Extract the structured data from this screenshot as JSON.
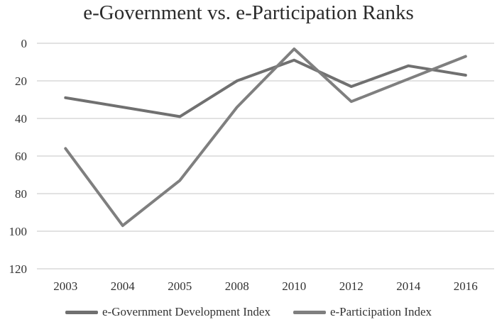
{
  "chart_data": {
    "type": "line",
    "title": "e-Government vs. e-Participation Ranks",
    "xlabel": "",
    "ylabel": "",
    "categories": [
      "2003",
      "2004",
      "2005",
      "2008",
      "2010",
      "2012",
      "2014",
      "2016"
    ],
    "y_ticks": [
      0,
      20,
      40,
      60,
      80,
      100,
      120
    ],
    "ylim": [
      0,
      120
    ],
    "y_inverted": true,
    "grid": true,
    "legend": "bottom",
    "series": [
      {
        "name": "e-Government Development Index",
        "color": "#707070",
        "values": [
          29,
          null,
          39,
          20,
          9,
          23,
          12,
          17
        ]
      },
      {
        "name": "e-Participation Index",
        "color": "#7f7f7f",
        "values": [
          56,
          97,
          73,
          34,
          3,
          31,
          19,
          7
        ]
      }
    ]
  }
}
